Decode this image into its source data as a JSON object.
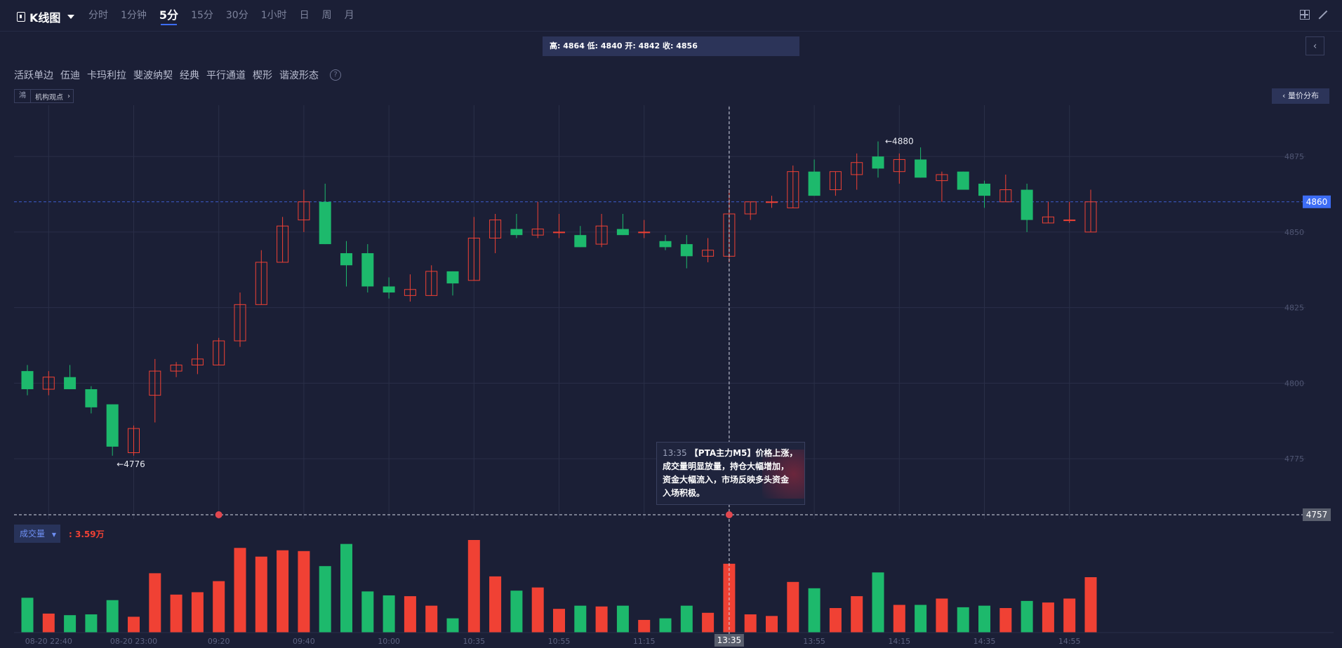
{
  "header": {
    "title": "K线图",
    "periods": [
      {
        "label": "分时"
      },
      {
        "label": "1分钟"
      },
      {
        "label": "5分",
        "active": true
      },
      {
        "label": "15分"
      },
      {
        "label": "30分"
      },
      {
        "label": "1小时"
      },
      {
        "label": "日"
      },
      {
        "label": "周"
      },
      {
        "label": "月"
      }
    ]
  },
  "ohlc_info": "高: 4864 低: 4840 开: 4842 收: 4856",
  "tools": [
    "活跃单边",
    "伍迪",
    "卡玛利拉",
    "斐波纳契",
    "经典",
    "平行通道",
    "楔形",
    "谐波形态"
  ],
  "help_icon": "?",
  "inst_view": {
    "icon": "鴻",
    "label": "机构观点"
  },
  "volume_profile_label": "量价分布",
  "volume": {
    "label": "成交量",
    "value": ": 3.59万"
  },
  "tooltip": {
    "time": "13:35",
    "line1": "【PTA主力M5】价格上涨，",
    "line2": "成交量明显放量，持仓大幅增加，",
    "line3": "资金大幅流入，市场反映多头资金",
    "line4": "入场积极。"
  },
  "colors": {
    "up": "#f04134",
    "down": "#1db96c",
    "bg": "#1b1f36",
    "grid": "#2a2f48",
    "accent": "#3d6df5"
  },
  "chart_data": {
    "type": "candlestick",
    "y_ticks": [
      4775,
      4800,
      4825,
      4850,
      4875
    ],
    "ylim": [
      4756,
      4898
    ],
    "x_labels": [
      {
        "i": 1,
        "label": "08-20 22:40"
      },
      {
        "i": 5,
        "label": "08-20 23:00"
      },
      {
        "i": 9,
        "label": "09:20"
      },
      {
        "i": 13,
        "label": "09:40"
      },
      {
        "i": 17,
        "label": "10:00"
      },
      {
        "i": 21,
        "label": "10:35"
      },
      {
        "i": 25,
        "label": "10:55"
      },
      {
        "i": 29,
        "label": "11:15"
      },
      {
        "i": 33,
        "label": "13:35"
      },
      {
        "i": 37,
        "label": "13:55"
      },
      {
        "i": 41,
        "label": "14:15"
      },
      {
        "i": 45,
        "label": "14:35"
      },
      {
        "i": 49,
        "label": "14:55"
      }
    ],
    "last_price": 4860,
    "crosshair": {
      "index": 33,
      "price": 4757,
      "time": "13:35"
    },
    "high_mark": {
      "index": 40,
      "value": 4880
    },
    "low_mark": {
      "index": 4,
      "value": 4776
    },
    "candles": [
      {
        "o": 4804,
        "h": 4806,
        "l": 4796,
        "c": 4798
      },
      {
        "o": 4798,
        "h": 4804,
        "l": 4796,
        "c": 4802
      },
      {
        "o": 4802,
        "h": 4806,
        "l": 4798,
        "c": 4798
      },
      {
        "o": 4798,
        "h": 4799,
        "l": 4790,
        "c": 4792
      },
      {
        "o": 4793,
        "h": 4793,
        "l": 4776,
        "c": 4779
      },
      {
        "o": 4777,
        "h": 4786,
        "l": 4776,
        "c": 4785
      },
      {
        "o": 4796,
        "h": 4808,
        "l": 4787,
        "c": 4804
      },
      {
        "o": 4804,
        "h": 4807,
        "l": 4802,
        "c": 4806
      },
      {
        "o": 4806,
        "h": 4813,
        "l": 4803,
        "c": 4808
      },
      {
        "o": 4806,
        "h": 4815,
        "l": 4806,
        "c": 4814
      },
      {
        "o": 4814,
        "h": 4830,
        "l": 4812,
        "c": 4826
      },
      {
        "o": 4826,
        "h": 4844,
        "l": 4826,
        "c": 4840
      },
      {
        "o": 4840,
        "h": 4855,
        "l": 4840,
        "c": 4852
      },
      {
        "o": 4854,
        "h": 4864,
        "l": 4850,
        "c": 4860
      },
      {
        "o": 4860,
        "h": 4866,
        "l": 4846,
        "c": 4846
      },
      {
        "o": 4843,
        "h": 4847,
        "l": 4832,
        "c": 4839
      },
      {
        "o": 4843,
        "h": 4846,
        "l": 4830,
        "c": 4832
      },
      {
        "o": 4832,
        "h": 4835,
        "l": 4828,
        "c": 4830
      },
      {
        "o": 4829,
        "h": 4836,
        "l": 4827,
        "c": 4831
      },
      {
        "o": 4829,
        "h": 4839,
        "l": 4829,
        "c": 4837
      },
      {
        "o": 4837,
        "h": 4837,
        "l": 4829,
        "c": 4833
      },
      {
        "o": 4834,
        "h": 4855,
        "l": 4834,
        "c": 4848
      },
      {
        "o": 4848,
        "h": 4856,
        "l": 4843,
        "c": 4854
      },
      {
        "o": 4851,
        "h": 4856,
        "l": 4848,
        "c": 4849
      },
      {
        "o": 4849,
        "h": 4860,
        "l": 4848,
        "c": 4851
      },
      {
        "o": 4850,
        "h": 4856,
        "l": 4848,
        "c": 4850
      },
      {
        "o": 4849,
        "h": 4852,
        "l": 4845,
        "c": 4845
      },
      {
        "o": 4846,
        "h": 4856,
        "l": 4845,
        "c": 4852
      },
      {
        "o": 4851,
        "h": 4856,
        "l": 4849,
        "c": 4849
      },
      {
        "o": 4850,
        "h": 4854,
        "l": 4848,
        "c": 4850
      },
      {
        "o": 4847,
        "h": 4849,
        "l": 4844,
        "c": 4845
      },
      {
        "o": 4846,
        "h": 4849,
        "l": 4838,
        "c": 4842
      },
      {
        "o": 4842,
        "h": 4848,
        "l": 4840,
        "c": 4844
      },
      {
        "o": 4842,
        "h": 4864,
        "l": 4840,
        "c": 4856
      },
      {
        "o": 4856,
        "h": 4860,
        "l": 4854,
        "c": 4860
      },
      {
        "o": 4860,
        "h": 4862,
        "l": 4858,
        "c": 4860
      },
      {
        "o": 4858,
        "h": 4872,
        "l": 4858,
        "c": 4870
      },
      {
        "o": 4870,
        "h": 4874,
        "l": 4862,
        "c": 4862
      },
      {
        "o": 4864,
        "h": 4870,
        "l": 4862,
        "c": 4870
      },
      {
        "o": 4869,
        "h": 4876,
        "l": 4864,
        "c": 4873
      },
      {
        "o": 4875,
        "h": 4880,
        "l": 4868,
        "c": 4871
      },
      {
        "o": 4870,
        "h": 4876,
        "l": 4866,
        "c": 4874
      },
      {
        "o": 4874,
        "h": 4878,
        "l": 4868,
        "c": 4868
      },
      {
        "o": 4867,
        "h": 4870,
        "l": 4860,
        "c": 4869
      },
      {
        "o": 4870,
        "h": 4870,
        "l": 4864,
        "c": 4864
      },
      {
        "o": 4866,
        "h": 4867,
        "l": 4858,
        "c": 4862
      },
      {
        "o": 4860,
        "h": 4869,
        "l": 4860,
        "c": 4864
      },
      {
        "o": 4864,
        "h": 4866,
        "l": 4850,
        "c": 4854
      },
      {
        "o": 4853,
        "h": 4860,
        "l": 4853,
        "c": 4855
      },
      {
        "o": 4854,
        "h": 4860,
        "l": 4853,
        "c": 4854
      },
      {
        "o": 4850,
        "h": 4864,
        "l": 4850,
        "c": 4860
      }
    ],
    "volumes": [
      44,
      24,
      22,
      23,
      41,
      20,
      75,
      48,
      51,
      65,
      107,
      96,
      104,
      103,
      84,
      112,
      52,
      47,
      46,
      34,
      18,
      117,
      71,
      53,
      57,
      30,
      34,
      33,
      34,
      16,
      18,
      34,
      25,
      87,
      23,
      21,
      64,
      56,
      31,
      46,
      76,
      35,
      35,
      43,
      32,
      34,
      31,
      40,
      38,
      43,
      70
    ]
  }
}
